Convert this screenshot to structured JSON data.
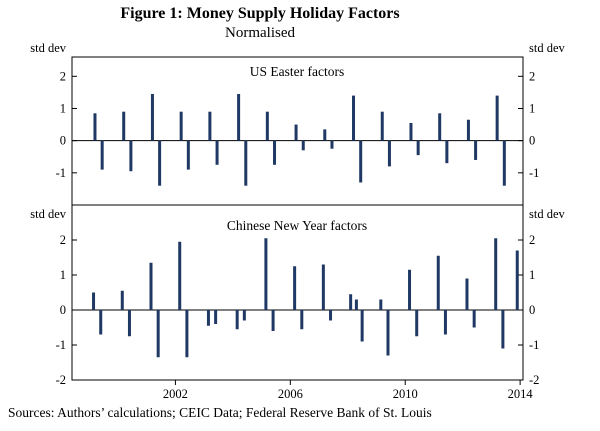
{
  "figure": {
    "title": "Figure 1: Money Supply Holiday Factors",
    "subtitle": "Normalised",
    "sources": "Sources:  Authors’ calculations; CEIC Data; Federal Reserve Bank of St. Louis"
  },
  "axis": {
    "x_range": [
      1998.4,
      2014.1
    ],
    "x_ticks": [
      2002,
      2006,
      2010,
      2014
    ]
  },
  "chart_data": [
    {
      "type": "bar",
      "title": "US Easter factors",
      "ylabel": "std dev",
      "ylim": [
        -2,
        2.6
      ],
      "yticks": [
        2,
        1,
        0,
        -1
      ],
      "bar_color": "#1f3864",
      "points": [
        [
          1999.2,
          0.85
        ],
        [
          1999.45,
          -0.9
        ],
        [
          2000.2,
          0.9
        ],
        [
          2000.45,
          -0.95
        ],
        [
          2001.2,
          1.45
        ],
        [
          2001.45,
          -1.4
        ],
        [
          2002.2,
          0.9
        ],
        [
          2002.45,
          -0.9
        ],
        [
          2003.2,
          0.9
        ],
        [
          2003.45,
          -0.75
        ],
        [
          2004.2,
          1.45
        ],
        [
          2004.45,
          -1.4
        ],
        [
          2005.2,
          0.9
        ],
        [
          2005.45,
          -0.75
        ],
        [
          2006.2,
          0.5
        ],
        [
          2006.45,
          -0.3
        ],
        [
          2007.2,
          0.35
        ],
        [
          2007.45,
          -0.25
        ],
        [
          2008.2,
          1.4
        ],
        [
          2008.45,
          -1.3
        ],
        [
          2009.2,
          0.9
        ],
        [
          2009.45,
          -0.8
        ],
        [
          2010.2,
          0.55
        ],
        [
          2010.45,
          -0.45
        ],
        [
          2011.2,
          0.85
        ],
        [
          2011.45,
          -0.7
        ],
        [
          2012.2,
          0.65
        ],
        [
          2012.45,
          -0.6
        ],
        [
          2013.2,
          1.4
        ],
        [
          2013.45,
          -1.4
        ]
      ]
    },
    {
      "type": "bar",
      "title": "Chinese New Year factors",
      "ylabel": "std dev",
      "ylim": [
        -2,
        3.0
      ],
      "yticks": [
        2,
        1,
        0,
        -1,
        -2
      ],
      "bar_color": "#1f3864",
      "points": [
        [
          1999.15,
          0.5
        ],
        [
          1999.4,
          -0.7
        ],
        [
          2000.15,
          0.55
        ],
        [
          2000.4,
          -0.75
        ],
        [
          2001.15,
          1.35
        ],
        [
          2001.4,
          -1.35
        ],
        [
          2002.15,
          1.95
        ],
        [
          2002.4,
          -1.35
        ],
        [
          2003.15,
          -0.45
        ],
        [
          2003.4,
          -0.4
        ],
        [
          2004.15,
          -0.55
        ],
        [
          2004.4,
          -0.3
        ],
        [
          2005.15,
          2.05
        ],
        [
          2005.4,
          -0.6
        ],
        [
          2006.15,
          1.25
        ],
        [
          2006.4,
          -0.55
        ],
        [
          2007.15,
          1.3
        ],
        [
          2007.4,
          -0.3
        ],
        [
          2008.1,
          0.45
        ],
        [
          2008.3,
          0.3
        ],
        [
          2008.5,
          -0.9
        ],
        [
          2009.15,
          0.3
        ],
        [
          2009.4,
          -1.3
        ],
        [
          2010.15,
          1.15
        ],
        [
          2010.4,
          -0.75
        ],
        [
          2011.15,
          1.55
        ],
        [
          2011.4,
          -0.7
        ],
        [
          2012.15,
          0.9
        ],
        [
          2012.4,
          -0.5
        ],
        [
          2013.15,
          2.05
        ],
        [
          2013.4,
          -1.1
        ],
        [
          2013.9,
          1.7
        ]
      ]
    }
  ]
}
